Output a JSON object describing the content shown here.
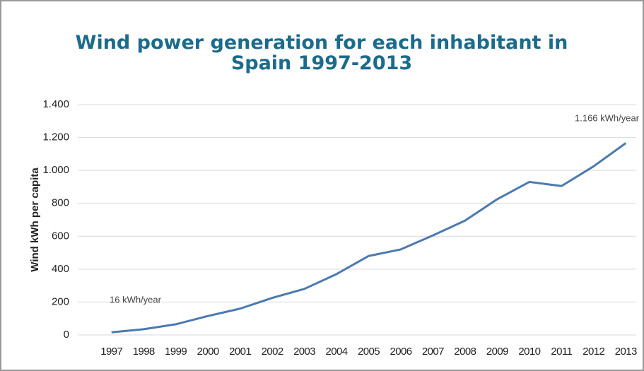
{
  "chart_data": {
    "type": "line",
    "title": "Wind power generation for each inhabitant in Spain 1997-2013",
    "y_label": "Wind kWh per capita",
    "categories": [
      "1997",
      "1998",
      "1999",
      "2000",
      "2001",
      "2002",
      "2003",
      "2004",
      "2005",
      "2006",
      "2007",
      "2008",
      "2009",
      "2010",
      "2011",
      "2012",
      "2013"
    ],
    "series": [
      {
        "name": "Wind kWh per capita",
        "color": "#4a7ab0",
        "values": [
          16,
          35,
          65,
          115,
          160,
          225,
          280,
          370,
          480,
          520,
          605,
          695,
          825,
          930,
          905,
          1025,
          1166
        ]
      }
    ],
    "ylim": [
      0,
      1400
    ],
    "yticks": [
      0,
      200,
      400,
      600,
      800,
      {
        "value": 1000,
        "label": "1.000"
      },
      {
        "value": 1200,
        "label": "1.200"
      },
      {
        "value": 1400,
        "label": "1.400"
      }
    ],
    "grid": true,
    "annotations": [
      "16 kWh/year",
      "1.166 kWh/year"
    ]
  }
}
